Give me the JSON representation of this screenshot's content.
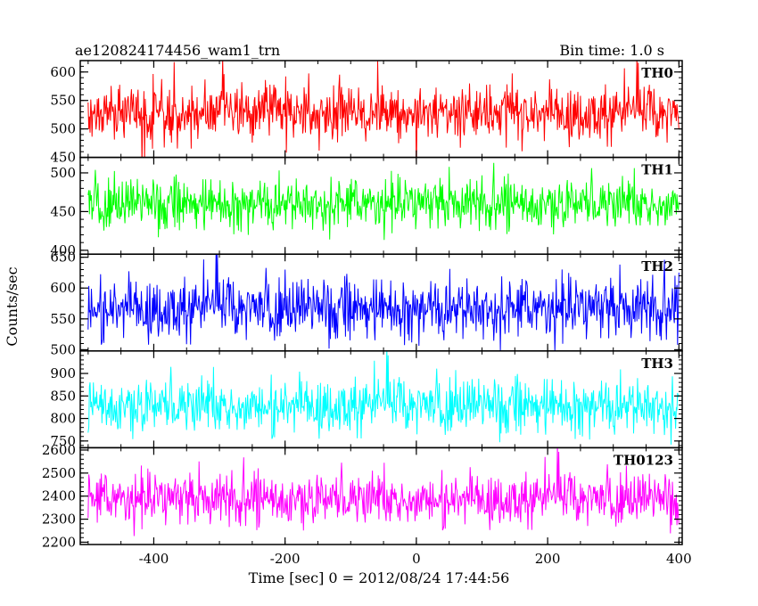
{
  "header": {
    "left": "ae120824174456_wam1_trn",
    "right": "Bin time: 1.0 s"
  },
  "ylabel": "Counts/sec",
  "xlabel": "Time [sec] 0 = 2012/08/24 17:44:56",
  "chart_data": {
    "type": "line",
    "title": "ae120824174456_wam1_trn",
    "xlabel": "Time [sec] 0 = 2012/08/24 17:44:56",
    "ylabel": "Counts/sec",
    "bin_time_s": 1.0,
    "xlim": [
      -512,
      405
    ],
    "x_start": -500,
    "x_end": 400,
    "x_ticks": [
      -400,
      -200,
      0,
      200,
      400
    ],
    "panels": [
      {
        "name": "TH0",
        "color": "#ff0000",
        "ylim": [
          450,
          620
        ],
        "y_ticks": [
          450,
          500,
          550,
          600
        ],
        "mean": 528,
        "noise": 24
      },
      {
        "name": "TH1",
        "color": "#00ff00",
        "ylim": [
          395,
          520
        ],
        "y_ticks": [
          400,
          450,
          500
        ],
        "mean": 461,
        "noise": 16
      },
      {
        "name": "TH2",
        "color": "#0000ff",
        "ylim": [
          498,
          655
        ],
        "y_ticks": [
          500,
          550,
          600,
          650
        ],
        "mean": 568,
        "noise": 24
      },
      {
        "name": "TH3",
        "color": "#00ffff",
        "ylim": [
          735,
          950
        ],
        "y_ticks": [
          750,
          800,
          850,
          900
        ],
        "mean": 830,
        "noise": 30
      },
      {
        "name": "TH0123",
        "color": "#ff00ff",
        "ylim": [
          2190,
          2610
        ],
        "y_ticks": [
          2200,
          2300,
          2400,
          2500,
          2600
        ],
        "mean": 2390,
        "noise": 55
      }
    ]
  }
}
